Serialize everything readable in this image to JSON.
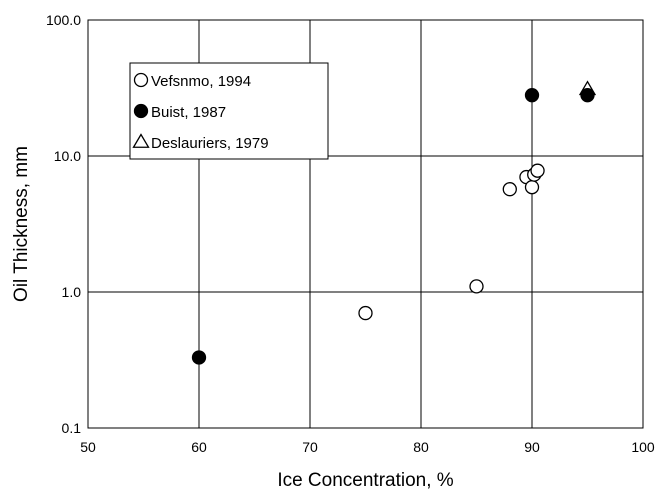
{
  "chart_data": {
    "type": "scatter",
    "xlabel": "Ice Concentration, %",
    "ylabel": "Oil Thickness, mm",
    "xlim": [
      50,
      100
    ],
    "ylim": [
      0.1,
      100
    ],
    "yscale": "log",
    "grid": true,
    "legend_position": "top-left",
    "x_ticks": [
      "50",
      "60",
      "70",
      "80",
      "90",
      "100"
    ],
    "y_ticks": [
      "0.1",
      "1.0",
      "10.0",
      "100.0"
    ],
    "series": [
      {
        "name": "Vefsnmo, 1994",
        "marker": "open-circle",
        "points": [
          {
            "x": 75,
            "y": 0.7
          },
          {
            "x": 85,
            "y": 1.1
          },
          {
            "x": 88,
            "y": 5.7
          },
          {
            "x": 89.5,
            "y": 7.0
          },
          {
            "x": 90,
            "y": 5.9
          },
          {
            "x": 90.2,
            "y": 7.3
          },
          {
            "x": 90.5,
            "y": 7.8
          }
        ]
      },
      {
        "name": "Buist, 1987",
        "marker": "filled-circle",
        "points": [
          {
            "x": 60,
            "y": 0.33
          },
          {
            "x": 90,
            "y": 28
          },
          {
            "x": 95,
            "y": 28
          }
        ]
      },
      {
        "name": "Deslauriers, 1979",
        "marker": "open-triangle",
        "points": [
          {
            "x": 95,
            "y": 31
          }
        ]
      }
    ],
    "colors": {
      "marker_stroke": "#000000",
      "marker_fill_open": "#ffffff",
      "marker_fill_solid": "#000000",
      "grid": "#000000"
    }
  }
}
